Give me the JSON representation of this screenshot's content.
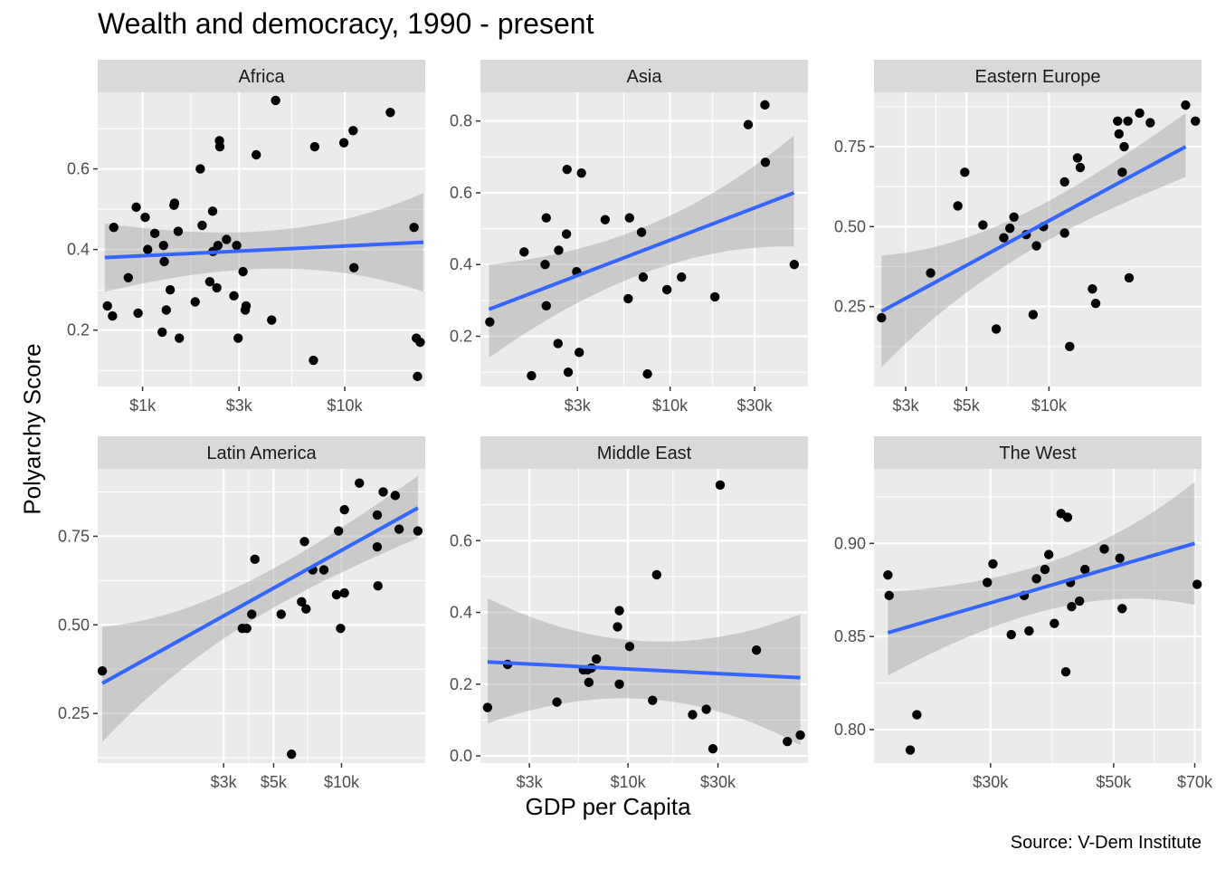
{
  "title": "Wealth and democracy, 1990 - present",
  "caption": "Source: V-Dem Institute",
  "xlabel": "GDP per Capita",
  "ylabel": "Polyarchy Score",
  "colors": {
    "panel_bg": "#EBEBEB",
    "grid": "#FFFFFF",
    "strip_bg": "#D9D9D9",
    "points": "#000000",
    "fit_line": "#3366FF",
    "ribbon": "#999999"
  },
  "chart_data": [
    {
      "type": "scatter",
      "panel": "Africa",
      "x_scale": "log10",
      "xlim": [
        600,
        25000
      ],
      "ylim": [
        0.06,
        0.79
      ],
      "x_ticks": [
        {
          "value": 1000,
          "label": "$1k"
        },
        {
          "value": 3000,
          "label": "$3k"
        },
        {
          "value": 10000,
          "label": "$10k"
        }
      ],
      "y_ticks": [
        {
          "value": 0.2,
          "label": "0.2"
        },
        {
          "value": 0.4,
          "label": "0.4"
        },
        {
          "value": 0.6,
          "label": "0.6"
        }
      ],
      "points": [
        [
          670,
          0.26
        ],
        [
          720,
          0.455
        ],
        [
          710,
          0.235
        ],
        [
          850,
          0.33
        ],
        [
          930,
          0.505
        ],
        [
          950,
          0.242
        ],
        [
          1030,
          0.48
        ],
        [
          1060,
          0.4
        ],
        [
          1150,
          0.44
        ],
        [
          1250,
          0.195
        ],
        [
          1270,
          0.41
        ],
        [
          1280,
          0.37
        ],
        [
          1310,
          0.25
        ],
        [
          1370,
          0.3
        ],
        [
          1430,
          0.51
        ],
        [
          1440,
          0.515
        ],
        [
          1500,
          0.445
        ],
        [
          1520,
          0.18
        ],
        [
          1820,
          0.27
        ],
        [
          1930,
          0.6
        ],
        [
          1970,
          0.46
        ],
        [
          2150,
          0.32
        ],
        [
          2220,
          0.495
        ],
        [
          2230,
          0.395
        ],
        [
          2330,
          0.305
        ],
        [
          2360,
          0.41
        ],
        [
          2400,
          0.67
        ],
        [
          2410,
          0.655
        ],
        [
          2600,
          0.425
        ],
        [
          2830,
          0.285
        ],
        [
          2920,
          0.41
        ],
        [
          2970,
          0.18
        ],
        [
          3140,
          0.345
        ],
        [
          3220,
          0.25
        ],
        [
          3250,
          0.26
        ],
        [
          3650,
          0.635
        ],
        [
          4350,
          0.225
        ],
        [
          4550,
          0.77
        ],
        [
          7000,
          0.125
        ],
        [
          7100,
          0.655
        ],
        [
          9900,
          0.665
        ],
        [
          11000,
          0.695
        ],
        [
          11100,
          0.355
        ],
        [
          16800,
          0.74
        ],
        [
          22000,
          0.455
        ],
        [
          22600,
          0.18
        ],
        [
          22900,
          0.085
        ],
        [
          23600,
          0.17
        ]
      ],
      "fit": {
        "x": [
          650,
          24500
        ],
        "y": [
          0.38,
          0.418
        ],
        "lower": [
          0.295,
          0.295
        ],
        "upper": [
          0.465,
          0.54
        ]
      }
    },
    {
      "type": "scatter",
      "panel": "Asia",
      "x_scale": "log10",
      "xlim": [
        850,
        60000
      ],
      "ylim": [
        0.06,
        0.88
      ],
      "x_ticks": [
        {
          "value": 3000,
          "label": "$3k"
        },
        {
          "value": 10000,
          "label": "$10k"
        },
        {
          "value": 30000,
          "label": "$30k"
        }
      ],
      "y_ticks": [
        {
          "value": 0.2,
          "label": "0.2"
        },
        {
          "value": 0.4,
          "label": "0.4"
        },
        {
          "value": 0.6,
          "label": "0.6"
        },
        {
          "value": 0.8,
          "label": "0.8"
        }
      ],
      "points": [
        [
          960,
          0.24
        ],
        [
          1500,
          0.435
        ],
        [
          1650,
          0.09
        ],
        [
          1970,
          0.4
        ],
        [
          2000,
          0.285
        ],
        [
          2000,
          0.53
        ],
        [
          2330,
          0.18
        ],
        [
          2350,
          0.44
        ],
        [
          2600,
          0.485
        ],
        [
          2620,
          0.665
        ],
        [
          2660,
          0.1
        ],
        [
          2970,
          0.38
        ],
        [
          3070,
          0.155
        ],
        [
          3160,
          0.655
        ],
        [
          4300,
          0.525
        ],
        [
          5900,
          0.53
        ],
        [
          5800,
          0.305
        ],
        [
          6900,
          0.49
        ],
        [
          7050,
          0.365
        ],
        [
          7450,
          0.095
        ],
        [
          9600,
          0.33
        ],
        [
          11600,
          0.365
        ],
        [
          17900,
          0.31
        ],
        [
          27600,
          0.79
        ],
        [
          34300,
          0.845
        ],
        [
          34500,
          0.685
        ],
        [
          50200,
          0.4
        ]
      ],
      "fit": {
        "x": [
          950,
          50000
        ],
        "y": [
          0.275,
          0.6
        ],
        "lower": [
          0.14,
          0.45
        ],
        "upper": [
          0.4,
          0.76
        ]
      }
    },
    {
      "type": "scatter",
      "panel": "Eastern Europe",
      "x_scale": "log10",
      "xlim": [
        2300,
        36000
      ],
      "ylim": [
        0.0,
        0.92
      ],
      "x_ticks": [
        {
          "value": 3000,
          "label": "$3k"
        },
        {
          "value": 5000,
          "label": "$5k"
        },
        {
          "value": 10000,
          "label": "$10k"
        }
      ],
      "y_ticks": [
        {
          "value": 0.25,
          "label": "0.25"
        },
        {
          "value": 0.5,
          "label": "0.50"
        },
        {
          "value": 0.75,
          "label": "0.75"
        }
      ],
      "points": [
        [
          2450,
          0.215
        ],
        [
          3700,
          0.355
        ],
        [
          4650,
          0.565
        ],
        [
          4930,
          0.67
        ],
        [
          5740,
          0.505
        ],
        [
          6420,
          0.18
        ],
        [
          6840,
          0.465
        ],
        [
          7200,
          0.495
        ],
        [
          7450,
          0.53
        ],
        [
          8260,
          0.475
        ],
        [
          8750,
          0.225
        ],
        [
          9000,
          0.44
        ],
        [
          9550,
          0.5
        ],
        [
          11400,
          0.48
        ],
        [
          11400,
          0.64
        ],
        [
          11900,
          0.125
        ],
        [
          12700,
          0.715
        ],
        [
          13000,
          0.685
        ],
        [
          14400,
          0.305
        ],
        [
          14800,
          0.26
        ],
        [
          17800,
          0.83
        ],
        [
          18000,
          0.79
        ],
        [
          18500,
          0.67
        ],
        [
          18800,
          0.75
        ],
        [
          19400,
          0.83
        ],
        [
          19600,
          0.34
        ],
        [
          21400,
          0.855
        ],
        [
          23400,
          0.825
        ],
        [
          31500,
          0.88
        ],
        [
          34200,
          0.83
        ]
      ],
      "fit": {
        "x": [
          2450,
          31500
        ],
        "y": [
          0.235,
          0.75
        ],
        "lower": [
          0.06,
          0.655
        ],
        "upper": [
          0.41,
          0.855
        ]
      }
    },
    {
      "type": "scatter",
      "panel": "Latin America",
      "x_scale": "log10",
      "xlim": [
        830,
        23500
      ],
      "ylim": [
        0.11,
        0.94
      ],
      "x_ticks": [
        {
          "value": 3000,
          "label": "$3k"
        },
        {
          "value": 5000,
          "label": "$5k"
        },
        {
          "value": 10000,
          "label": "$10k"
        }
      ],
      "y_ticks": [
        {
          "value": 0.25,
          "label": "0.25"
        },
        {
          "value": 0.5,
          "label": "0.50"
        },
        {
          "value": 0.75,
          "label": "0.75"
        }
      ],
      "points": [
        [
          870,
          0.37
        ],
        [
          3630,
          0.49
        ],
        [
          3800,
          0.49
        ],
        [
          4000,
          0.53
        ],
        [
          4130,
          0.685
        ],
        [
          5400,
          0.53
        ],
        [
          6000,
          0.135
        ],
        [
          6650,
          0.565
        ],
        [
          6850,
          0.735
        ],
        [
          6960,
          0.545
        ],
        [
          7450,
          0.655
        ],
        [
          8350,
          0.655
        ],
        [
          9500,
          0.585
        ],
        [
          9700,
          0.765
        ],
        [
          9900,
          0.49
        ],
        [
          10300,
          0.825
        ],
        [
          10300,
          0.59
        ],
        [
          12000,
          0.9
        ],
        [
          14400,
          0.72
        ],
        [
          14500,
          0.61
        ],
        [
          14400,
          0.81
        ],
        [
          15300,
          0.875
        ],
        [
          17300,
          0.865
        ],
        [
          18000,
          0.77
        ],
        [
          21800,
          0.765
        ]
      ],
      "fit": {
        "x": [
          870,
          21800
        ],
        "y": [
          0.335,
          0.83
        ],
        "lower": [
          0.17,
          0.745
        ],
        "upper": [
          0.495,
          0.92
        ]
      }
    },
    {
      "type": "scatter",
      "panel": "Middle East",
      "x_scale": "log10",
      "xlim": [
        1650,
        90000
      ],
      "ylim": [
        -0.02,
        0.8
      ],
      "x_ticks": [
        {
          "value": 3000,
          "label": "$3k"
        },
        {
          "value": 10000,
          "label": "$10k"
        },
        {
          "value": 30000,
          "label": "$30k"
        }
      ],
      "y_ticks": [
        {
          "value": 0.0,
          "label": "0.0"
        },
        {
          "value": 0.2,
          "label": "0.2"
        },
        {
          "value": 0.4,
          "label": "0.4"
        },
        {
          "value": 0.6,
          "label": "0.6"
        }
      ],
      "points": [
        [
          1800,
          0.135
        ],
        [
          2300,
          0.255
        ],
        [
          4200,
          0.15
        ],
        [
          5800,
          0.24
        ],
        [
          6100,
          0.24
        ],
        [
          6200,
          0.205
        ],
        [
          6400,
          0.245
        ],
        [
          6800,
          0.27
        ],
        [
          8800,
          0.36
        ],
        [
          9000,
          0.405
        ],
        [
          9000,
          0.2
        ],
        [
          10200,
          0.305
        ],
        [
          13500,
          0.155
        ],
        [
          14200,
          0.505
        ],
        [
          22000,
          0.115
        ],
        [
          26000,
          0.13
        ],
        [
          28200,
          0.02
        ],
        [
          30800,
          0.755
        ],
        [
          48000,
          0.295
        ],
        [
          70000,
          0.04
        ],
        [
          82000,
          0.058
        ]
      ],
      "fit": {
        "x": [
          1800,
          82000
        ],
        "y": [
          0.262,
          0.218
        ],
        "lower": [
          0.09,
          0.03
        ],
        "upper": [
          0.44,
          0.395
        ]
      }
    },
    {
      "type": "scatter",
      "panel": "The West",
      "x_scale": "log10",
      "xlim": [
        18500,
        72000
      ],
      "ylim": [
        0.782,
        0.94
      ],
      "x_ticks": [
        {
          "value": 30000,
          "label": "$30k"
        },
        {
          "value": 50000,
          "label": "$50k"
        },
        {
          "value": 70000,
          "label": "$70k"
        }
      ],
      "y_ticks": [
        {
          "value": 0.8,
          "label": "0.80"
        },
        {
          "value": 0.85,
          "label": "0.85"
        },
        {
          "value": 0.9,
          "label": "0.90"
        }
      ],
      "points": [
        [
          19600,
          0.883
        ],
        [
          19700,
          0.872
        ],
        [
          21500,
          0.789
        ],
        [
          22100,
          0.808
        ],
        [
          29600,
          0.879
        ],
        [
          30300,
          0.889
        ],
        [
          32700,
          0.851
        ],
        [
          34500,
          0.872
        ],
        [
          35200,
          0.853
        ],
        [
          36300,
          0.881
        ],
        [
          37600,
          0.886
        ],
        [
          38200,
          0.894
        ],
        [
          39100,
          0.857
        ],
        [
          40200,
          0.916
        ],
        [
          41000,
          0.831
        ],
        [
          41300,
          0.914
        ],
        [
          41800,
          0.879
        ],
        [
          42000,
          0.866
        ],
        [
          43400,
          0.869
        ],
        [
          44400,
          0.886
        ],
        [
          48100,
          0.897
        ],
        [
          51300,
          0.892
        ],
        [
          51800,
          0.865
        ],
        [
          70700,
          0.878
        ]
      ],
      "fit": {
        "x": [
          19600,
          70000
        ],
        "y": [
          0.852,
          0.9
        ],
        "lower": [
          0.829,
          0.867
        ],
        "upper": [
          0.874,
          0.933
        ]
      }
    }
  ]
}
